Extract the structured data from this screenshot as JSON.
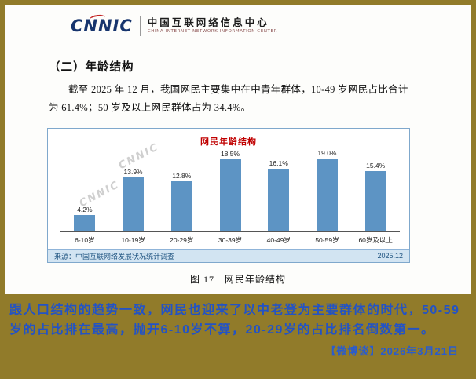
{
  "header": {
    "logo": "CNNIC",
    "org_cn": "中国互联网络信息中心",
    "org_en": "CHINA INTERNET NETWORK INFORMATION CENTER"
  },
  "document": {
    "section_title": "（二）年龄结构",
    "paragraph": "截至 2025 年 12 月，我国网民主要集中在中青年群体，10-49 岁网民占比合计为 61.4%；50 岁及以上网民群体占为 34.4%。",
    "figure_caption": "图 17　网民年龄结构",
    "watermark": "CNNIC"
  },
  "chart_data": {
    "type": "bar",
    "title": "网民年龄结构",
    "categories": [
      "6-10岁",
      "10-19岁",
      "20-29岁",
      "30-39岁",
      "40-49岁",
      "50-59岁",
      "60岁及以上"
    ],
    "values": [
      4.2,
      13.9,
      12.8,
      18.5,
      16.1,
      19.0,
      15.4
    ],
    "labels": [
      "4.2%",
      "13.9%",
      "12.8%",
      "18.5%",
      "16.1%",
      "19.0%",
      "15.4%"
    ],
    "ylim": [
      0,
      20
    ],
    "grid": false,
    "legend": false,
    "bar_color": "#5d94c4",
    "title_color": "#c00000",
    "source": "来源：中国互联网络发展状况统计调查",
    "period": "2025.12"
  },
  "footer": {
    "comment": "跟人口结构的趋势一致，网民也迎来了以中老登为主要群体的时代，50-59岁的占比排在最高，抛开6-10岁不算，20-29岁的占比排名倒数第一。",
    "credit": "【微博谈】2026年3月21日"
  },
  "colors": {
    "frame_gold": "#917b2a",
    "comment_blue": "#2353c5",
    "bar_blue": "#5d94c4",
    "chart_title_red": "#c00000",
    "source_strip_bg": "#d2e4f2"
  }
}
